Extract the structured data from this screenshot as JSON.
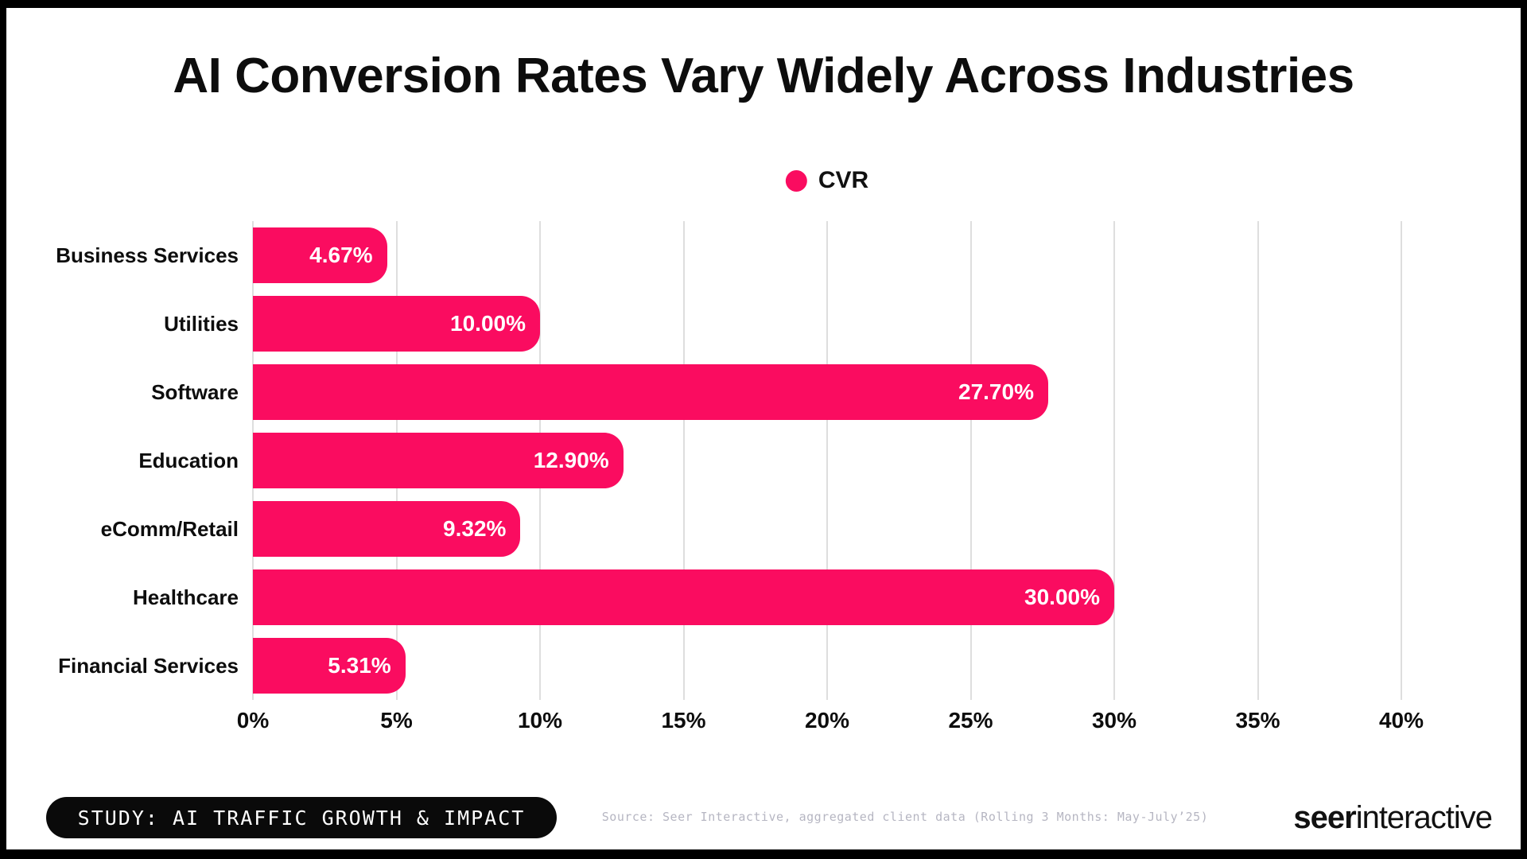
{
  "title": "AI Conversion Rates Vary Widely Across Industries",
  "legend": {
    "label": "CVR",
    "color": "#FA0C60"
  },
  "chart_data": {
    "type": "bar",
    "orientation": "horizontal",
    "title": "AI Conversion Rates Vary Widely Across Industries",
    "categories": [
      "Business Services",
      "Utilities",
      "Software",
      "Education",
      "eComm/Retail",
      "Healthcare",
      "Financial Services"
    ],
    "series": [
      {
        "name": "CVR",
        "values": [
          4.67,
          10.0,
          27.7,
          12.9,
          9.32,
          30.0,
          5.31
        ]
      }
    ],
    "value_labels": [
      "4.67%",
      "10.00%",
      "27.70%",
      "12.90%",
      "9.32%",
      "30.00%",
      "5.31%"
    ],
    "x_ticks": [
      "0%",
      "5%",
      "10%",
      "15%",
      "20%",
      "25%",
      "30%",
      "35%",
      "40%"
    ],
    "xlim": [
      0,
      40
    ],
    "xlabel": "",
    "ylabel": "",
    "grid": true,
    "legend_position": "top-center",
    "bar_color": "#FA0C60",
    "gridline_color": "#dedede"
  },
  "footer": {
    "badge": "STUDY: AI TRAFFIC GROWTH & IMPACT",
    "source": "Source: Seer Interactive, aggregated client data (Rolling 3 Months: May-July’25)",
    "logo_bold": "seer",
    "logo_regular": "interactive"
  }
}
